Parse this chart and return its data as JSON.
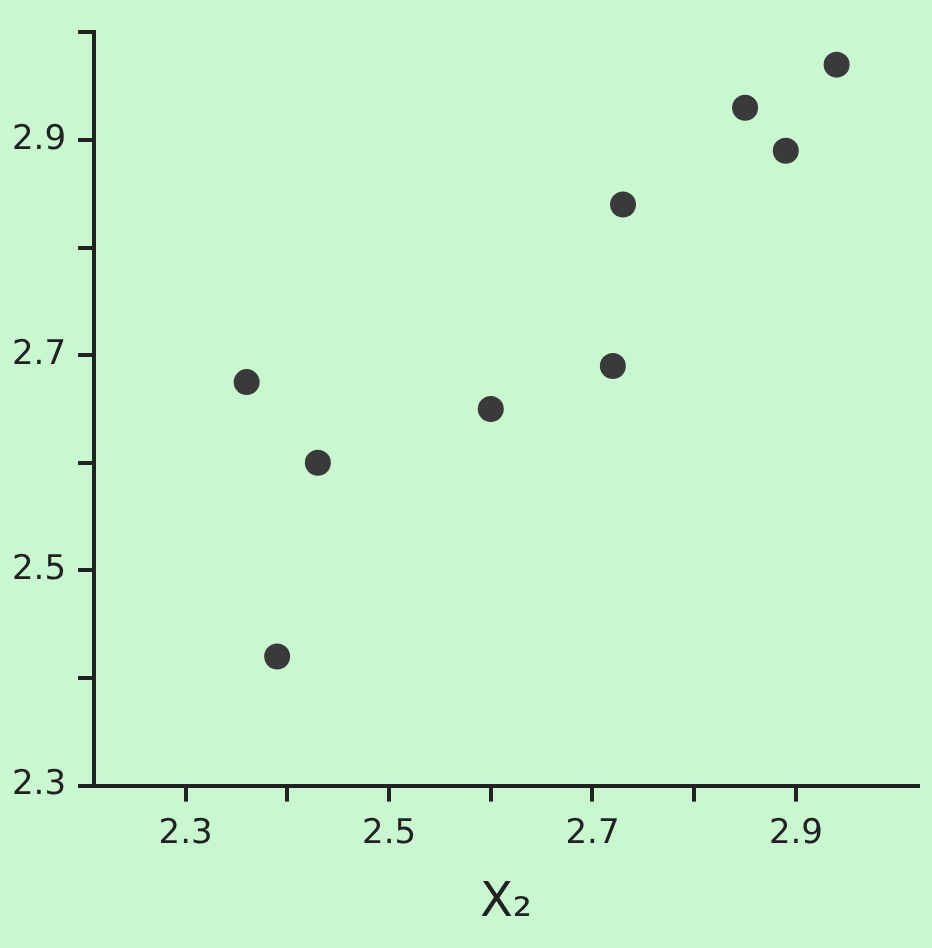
{
  "chart_data": {
    "type": "scatter",
    "xlabel": "X₂",
    "series": [
      {
        "color": "#3a3a3a",
        "x": [
          2.36,
          2.39,
          2.43,
          2.6,
          2.72,
          2.73,
          2.85,
          2.89,
          2.94
        ],
        "values": [
          2.675,
          2.42,
          2.6,
          2.65,
          2.69,
          2.84,
          2.93,
          2.89,
          2.97
        ]
      }
    ],
    "xlim": [
      2.21,
      3.02
    ],
    "xticks": [
      2.3,
      {
        "value": 2.4,
        "label": null
      },
      2.5,
      {
        "value": 2.6,
        "label": null
      },
      2.7,
      {
        "value": 2.8,
        "label": null
      },
      2.9
    ],
    "ylim": [
      2.3,
      3.0
    ],
    "yticks": [
      2.3,
      {
        "value": 2.4,
        "label": null
      },
      2.5,
      {
        "value": 2.6,
        "label": null
      },
      2.7,
      {
        "value": 2.8,
        "label": null
      },
      2.9,
      {
        "value": 3.0,
        "label": null
      }
    ],
    "grid": false,
    "legend": false,
    "marker": "circle"
  }
}
